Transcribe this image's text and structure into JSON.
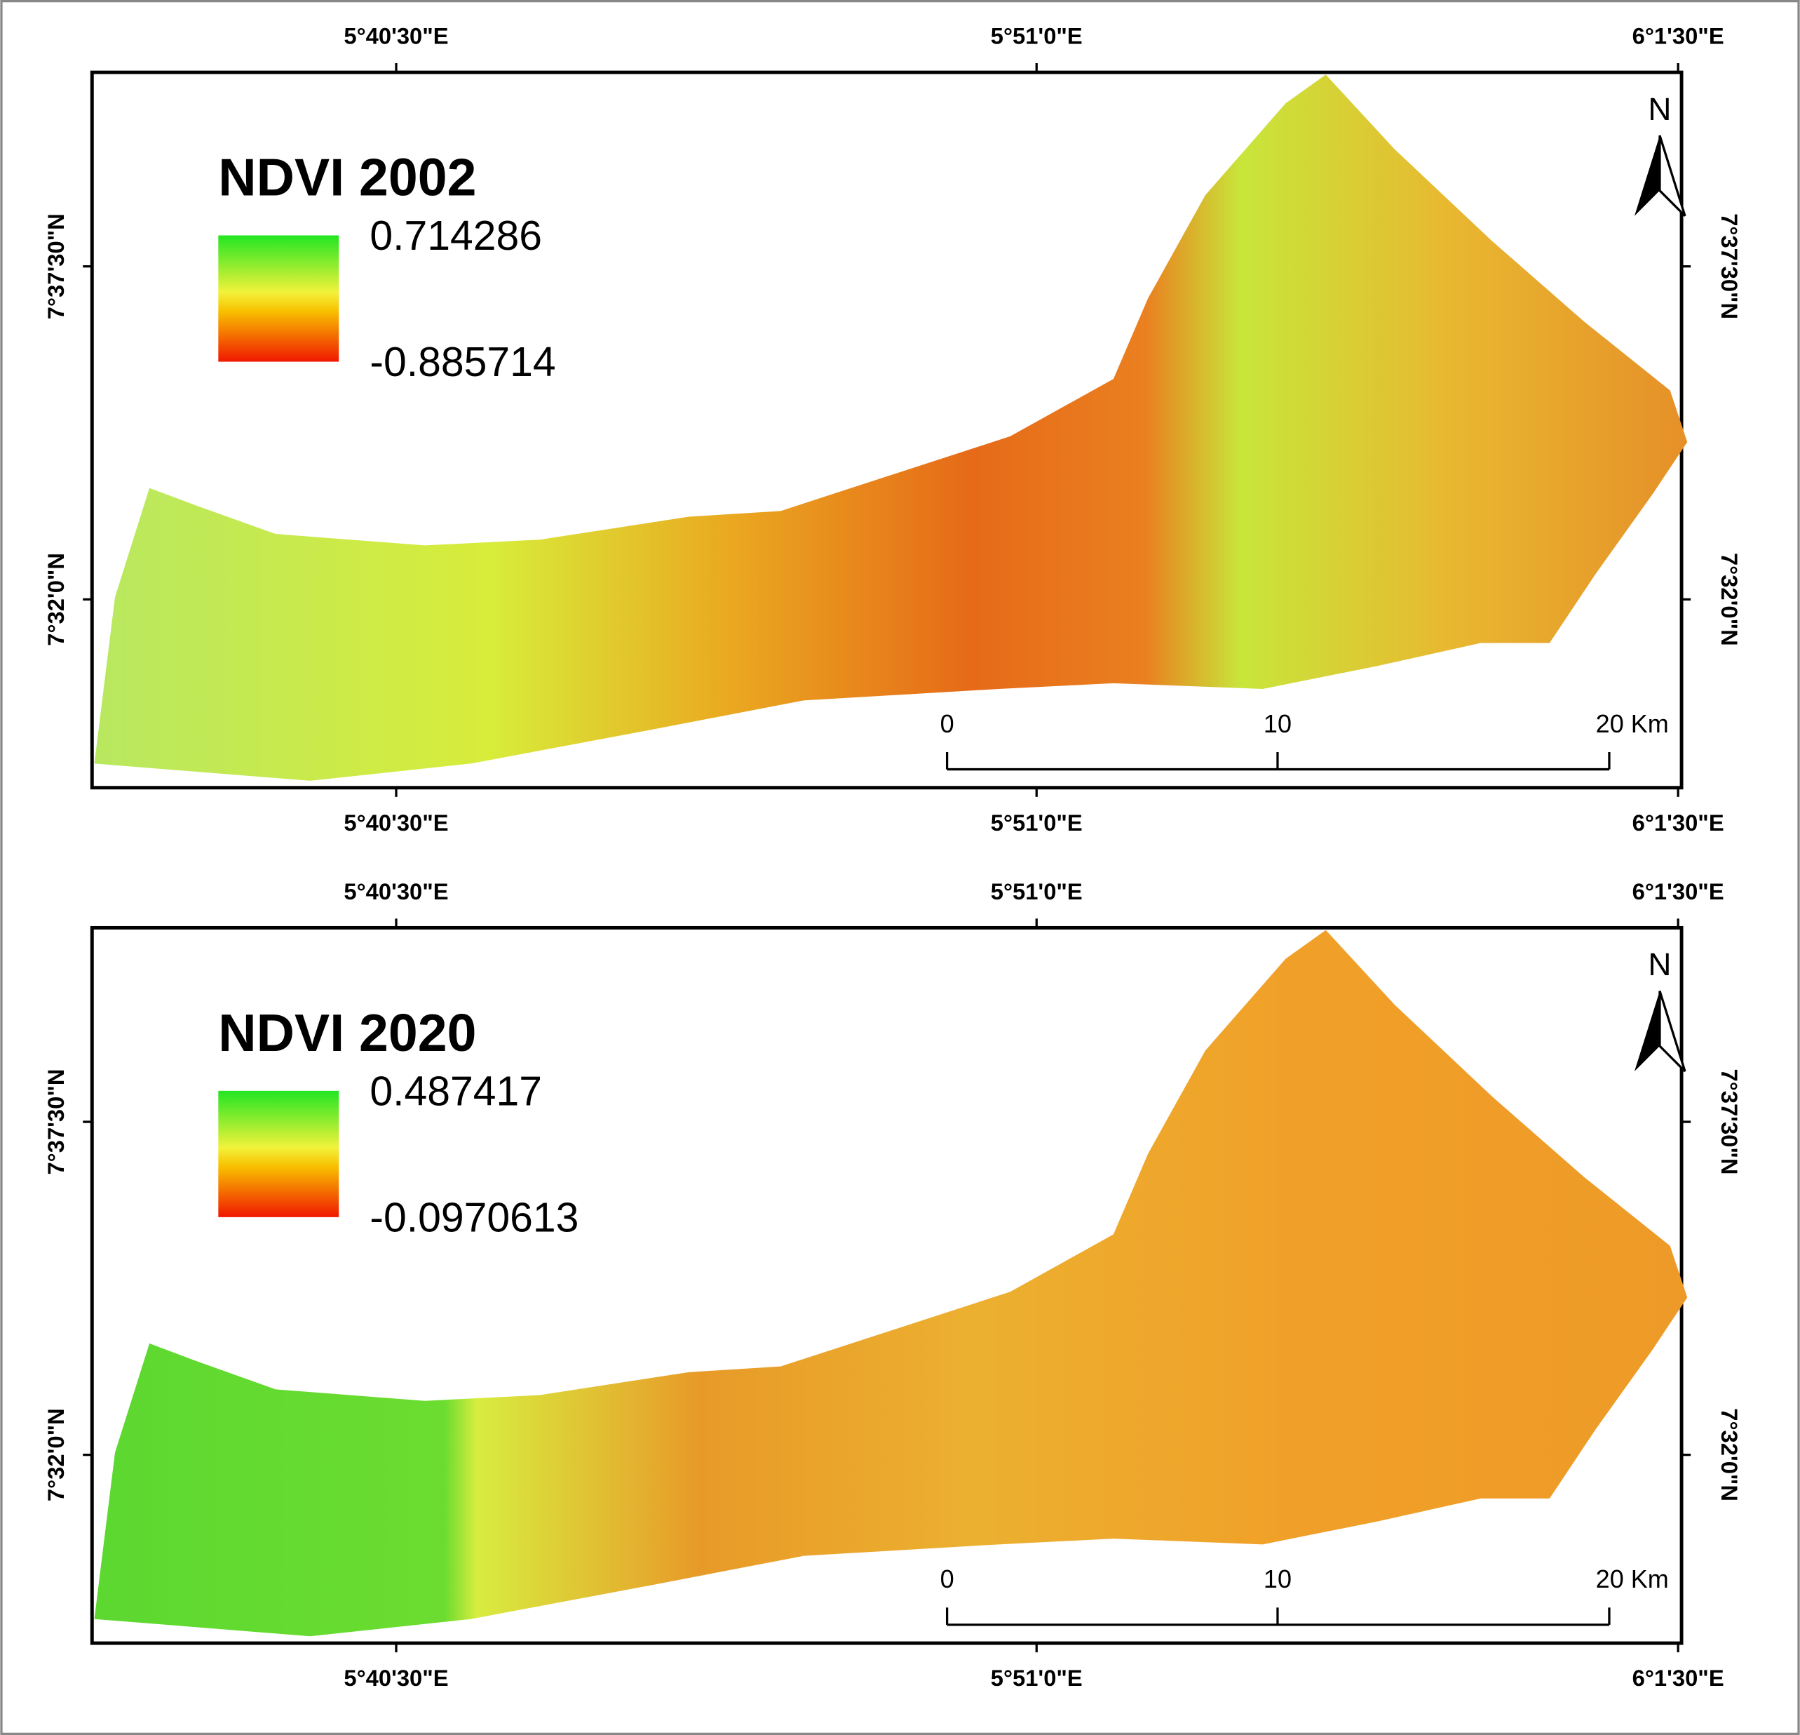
{
  "maps": [
    {
      "title": "NDVI 2002",
      "legend": {
        "high": "0.714286",
        "low": "-0.885714"
      },
      "top_labels": [
        "5°40'30\"E",
        "5°51'0\"E",
        "6°1'30\"E"
      ],
      "bottom_labels": [
        "5°40'30\"E",
        "5°51'0\"E",
        "6°1'30\"E"
      ],
      "left_labels": [
        "7°37'30\"N",
        "7°32'0\"N"
      ],
      "right_labels": [
        "7°37'30\"N",
        "7°32'0\"N"
      ],
      "scale_bar": [
        "0",
        "10",
        "20 Km"
      ],
      "north": "N"
    },
    {
      "title": "NDVI 2020",
      "legend": {
        "high": "0.487417",
        "low": "-0.0970613"
      },
      "top_labels": [
        "5°40'30\"E",
        "5°51'0\"E",
        "6°1'30\"E"
      ],
      "bottom_labels": [
        "5°40'30\"E",
        "5°51'0\"E",
        "6°1'30\"E"
      ],
      "left_labels": [
        "7°37'30\"N",
        "7°32'0\"N"
      ],
      "right_labels": [
        "7°37'30\"N",
        "7°32'0\"N"
      ],
      "scale_bar": [
        "0",
        "10",
        "20 Km"
      ],
      "north": "N"
    }
  ]
}
